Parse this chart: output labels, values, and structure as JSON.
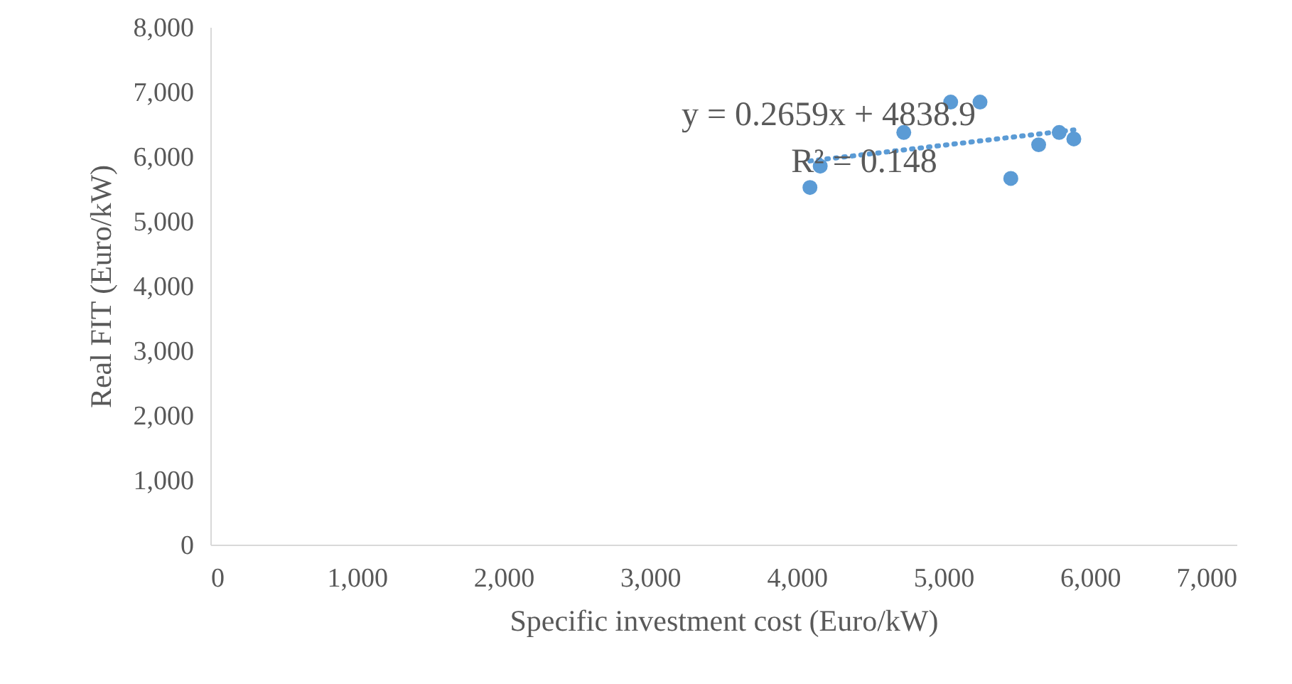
{
  "chart_data": {
    "type": "scatter",
    "xlabel": "Specific investment cost (Euro/kW)",
    "ylabel": "Real FIT (Euro/kW)",
    "xlim": [
      0,
      7000
    ],
    "xticks": [
      {
        "value": 0,
        "label": "0"
      },
      {
        "value": 1000,
        "label": "1,000"
      },
      {
        "value": 2000,
        "label": "2,000"
      },
      {
        "value": 3000,
        "label": "3,000"
      },
      {
        "value": 4000,
        "label": "4,000"
      },
      {
        "value": 5000,
        "label": "5,000"
      },
      {
        "value": 6000,
        "label": "6,000"
      },
      {
        "value": 7000,
        "label": "7,000"
      }
    ],
    "ylim": [
      0,
      8000
    ],
    "yticks": [
      {
        "value": 0,
        "label": "0"
      },
      {
        "value": 1000,
        "label": "1,000"
      },
      {
        "value": 2000,
        "label": "2,000"
      },
      {
        "value": 3000,
        "label": "3,000"
      },
      {
        "value": 4000,
        "label": "4,000"
      },
      {
        "value": 5000,
        "label": "5,000"
      },
      {
        "value": 6000,
        "label": "6,000"
      },
      {
        "value": 7000,
        "label": "7,000"
      },
      {
        "value": 8000,
        "label": "8,000"
      }
    ],
    "grid": false,
    "series": [
      {
        "color": "#5b9bd5",
        "marker": "circle",
        "x": [
          4090,
          4160,
          4730,
          5050,
          5250,
          5460,
          5650,
          5790,
          5890
        ],
        "values": [
          5520,
          5850,
          6370,
          6840,
          6840,
          5660,
          6180,
          6370,
          6270
        ]
      },
      {
        "type": "line",
        "color": "#5b9bd5",
        "marker": "none",
        "line_style": "dotted",
        "x": [
          4090,
          5890
        ],
        "values": [
          5930,
          6410
        ]
      }
    ],
    "annotations": [
      "y = 0.2659x + 4838.9",
      "R² = 0.148"
    ]
  }
}
